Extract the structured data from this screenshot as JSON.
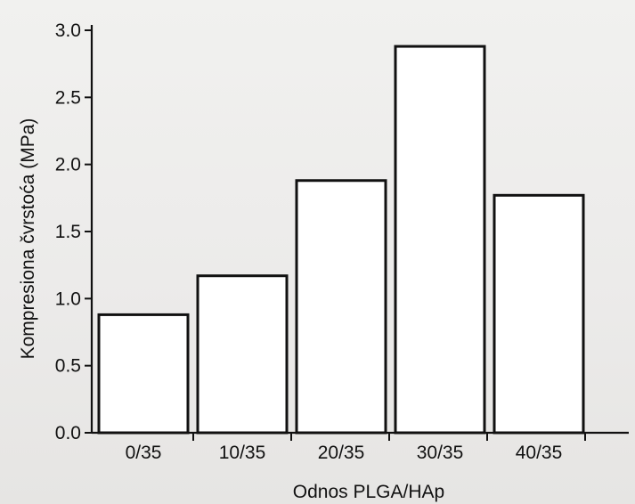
{
  "chart_data": {
    "type": "bar",
    "title": "",
    "xlabel": "Odnos PLGA/HAp",
    "ylabel": "Kompresiona čvrstoća (MPa)",
    "ylim": [
      0,
      3.0
    ],
    "yticks": [
      "0.0",
      "0.5",
      "1.0",
      "1.5",
      "2.0",
      "2.5",
      "3.0"
    ],
    "yticks_values": [
      0,
      0.5,
      1.0,
      1.5,
      2.0,
      2.5,
      3.0
    ],
    "x_tick_labels": [
      "0/35",
      "10/35",
      "20/35",
      "30/35",
      "40/35"
    ],
    "x_tick_positions": [
      0.5,
      1.5,
      2.5,
      3.5,
      4.5
    ],
    "bars": [
      {
        "center": 0,
        "value": 0.88
      },
      {
        "center": 1,
        "value": 1.17
      },
      {
        "center": 2,
        "value": 1.88
      },
      {
        "center": 3,
        "value": 2.88
      },
      {
        "center": 4,
        "value": 1.77
      }
    ],
    "grid": false,
    "legend": "none"
  }
}
